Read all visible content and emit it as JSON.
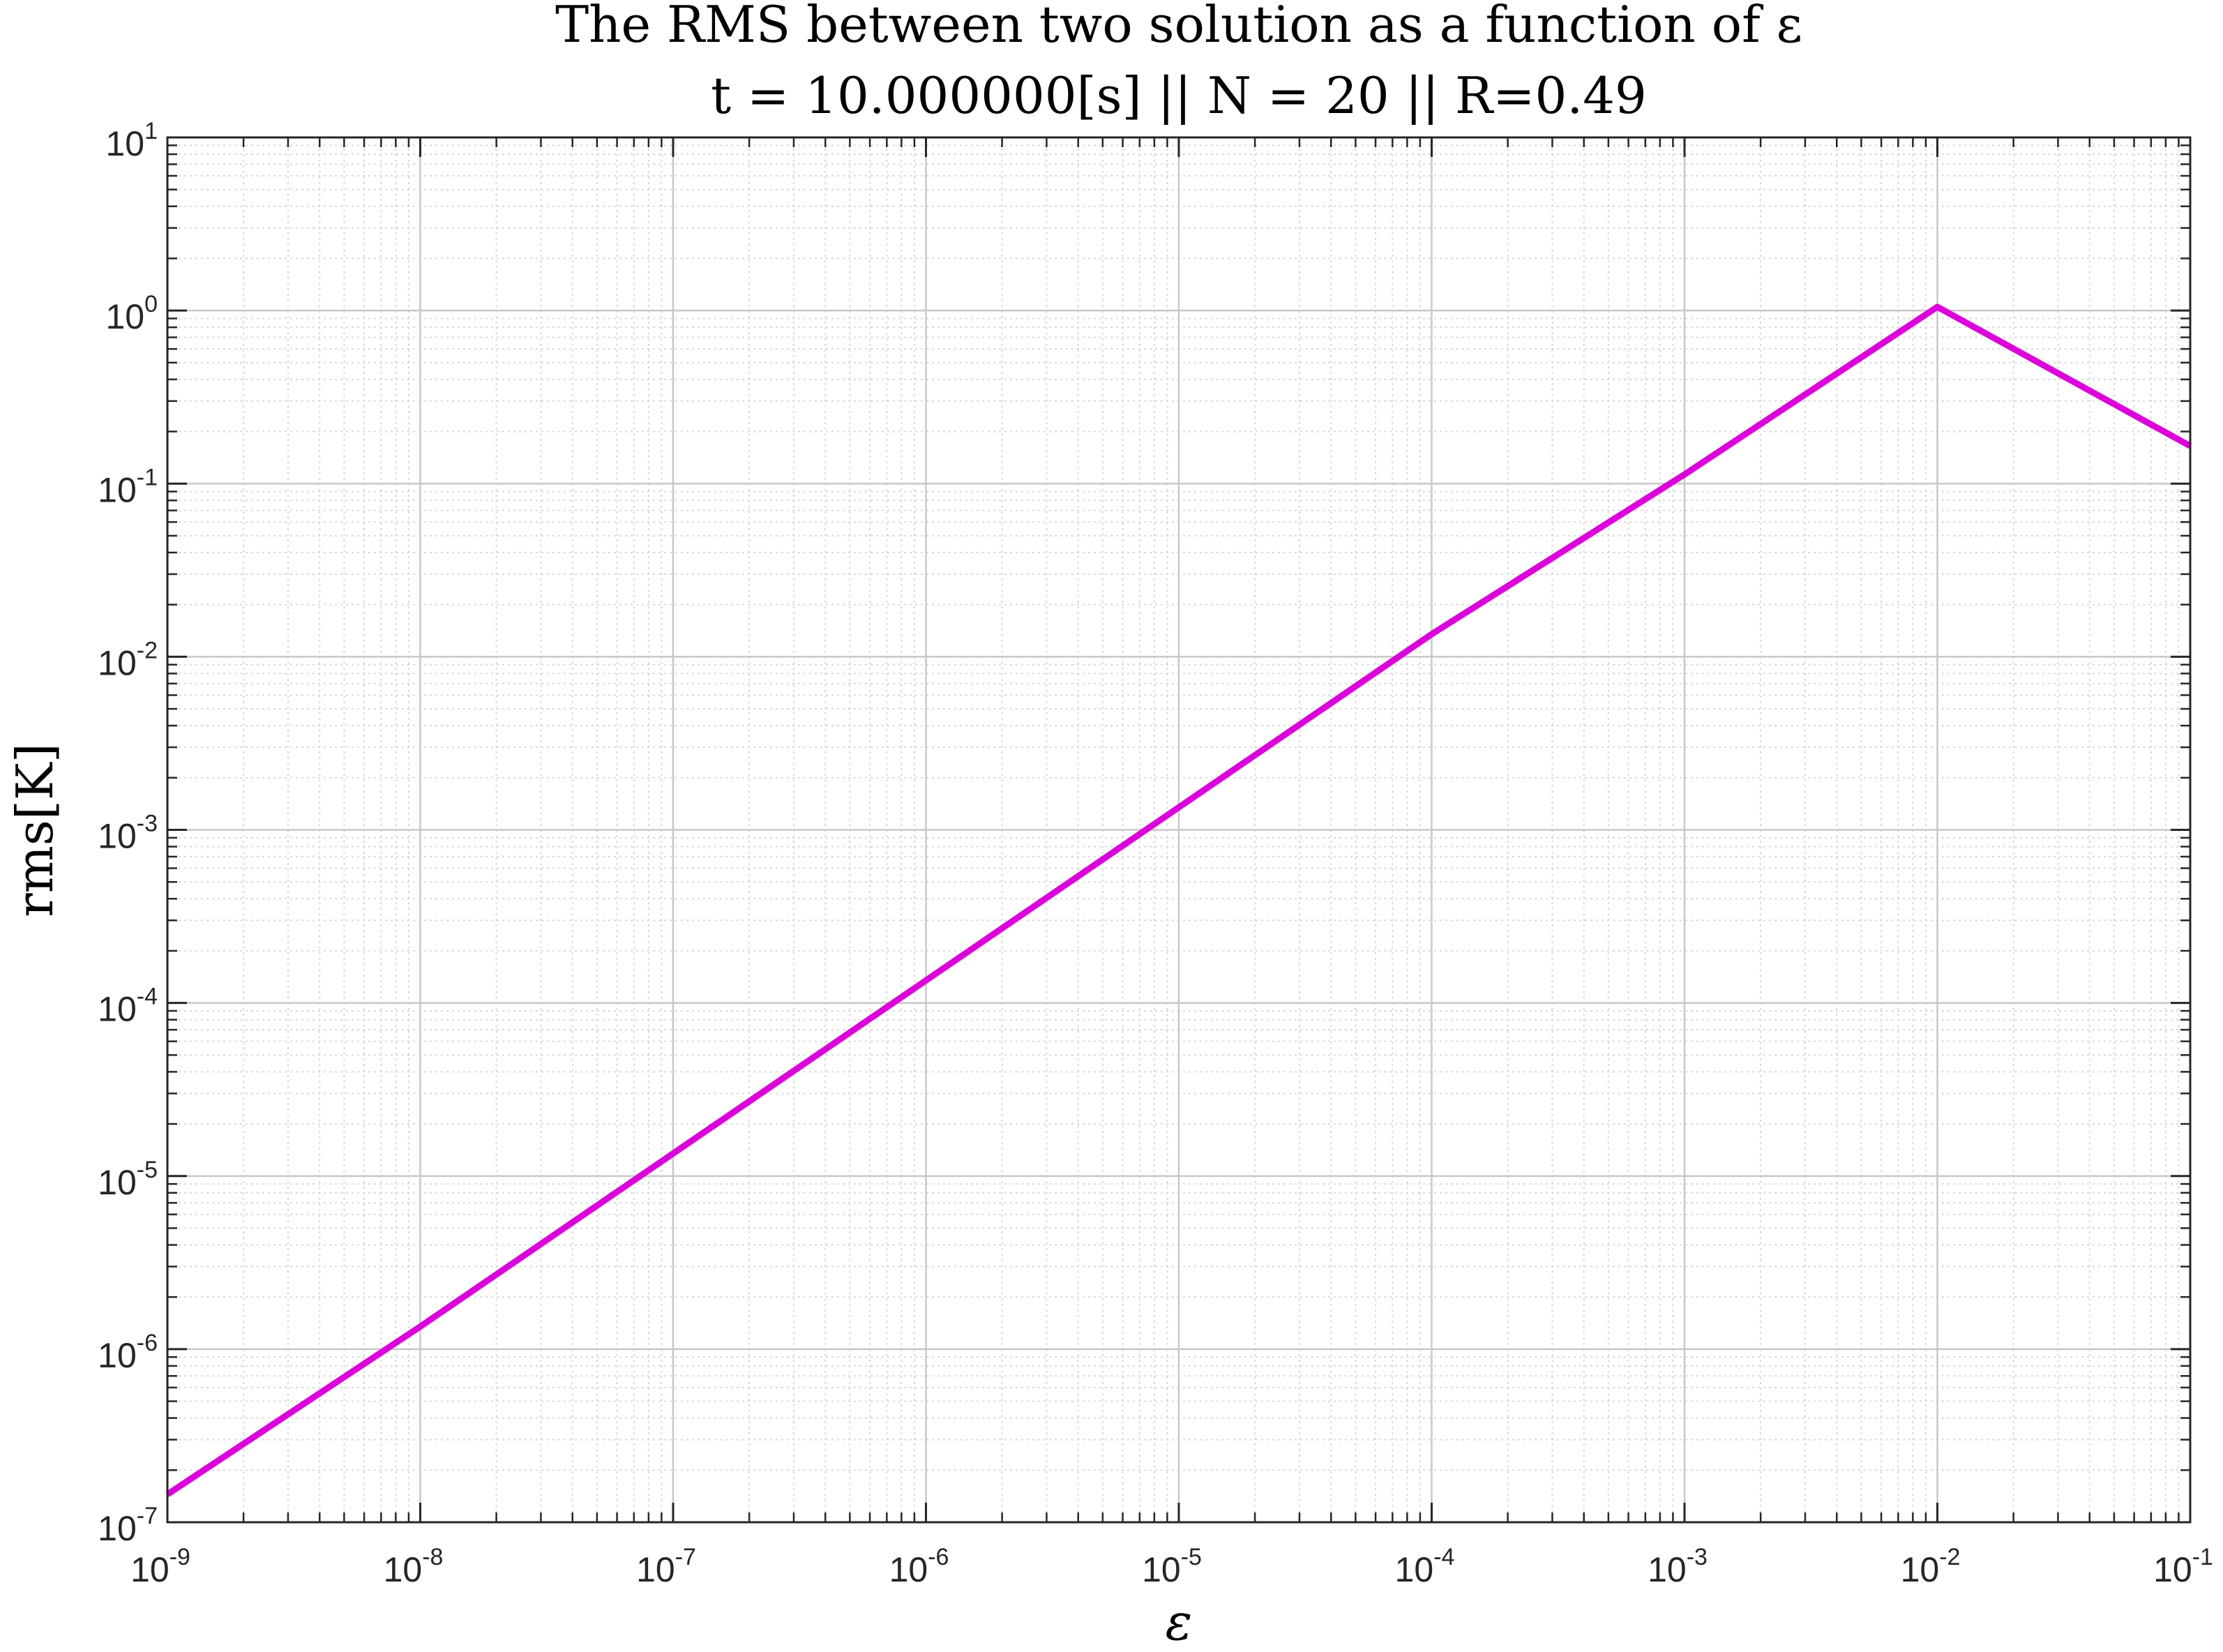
{
  "chart_data": {
    "type": "line",
    "title": "The RMS between two solution as a function of ε",
    "subtitle": "t = 10.000000[s] || N = 20 || R=0.49",
    "xlabel": "ε",
    "ylabel": "rms[K]",
    "x_scale": "log",
    "y_scale": "log",
    "xlim": [
      1e-09,
      0.1
    ],
    "ylim": [
      1e-07,
      10
    ],
    "grid": true,
    "minor_grid": true,
    "x_ticks": [
      {
        "base": "10",
        "exp": "-9"
      },
      {
        "base": "10",
        "exp": "-8"
      },
      {
        "base": "10",
        "exp": "-7"
      },
      {
        "base": "10",
        "exp": "-6"
      },
      {
        "base": "10",
        "exp": "-5"
      },
      {
        "base": "10",
        "exp": "-4"
      },
      {
        "base": "10",
        "exp": "-3"
      },
      {
        "base": "10",
        "exp": "-2"
      },
      {
        "base": "10",
        "exp": "-1"
      }
    ],
    "y_ticks": [
      {
        "base": "10",
        "exp": "-7"
      },
      {
        "base": "10",
        "exp": "-6"
      },
      {
        "base": "10",
        "exp": "-5"
      },
      {
        "base": "10",
        "exp": "-4"
      },
      {
        "base": "10",
        "exp": "-3"
      },
      {
        "base": "10",
        "exp": "-2"
      },
      {
        "base": "10",
        "exp": "-1"
      },
      {
        "base": "10",
        "exp": "0"
      },
      {
        "base": "10",
        "exp": "1"
      }
    ],
    "series": [
      {
        "color": "#dd00dd",
        "x": [
          1e-09,
          1e-08,
          1e-07,
          1e-06,
          1e-05,
          0.0001,
          0.001,
          0.01,
          0.1
        ],
        "y": [
          1.45e-07,
          1.35e-06,
          1.35e-05,
          0.000135,
          0.00135,
          0.0135,
          0.113,
          1.05,
          0.165
        ]
      }
    ]
  }
}
